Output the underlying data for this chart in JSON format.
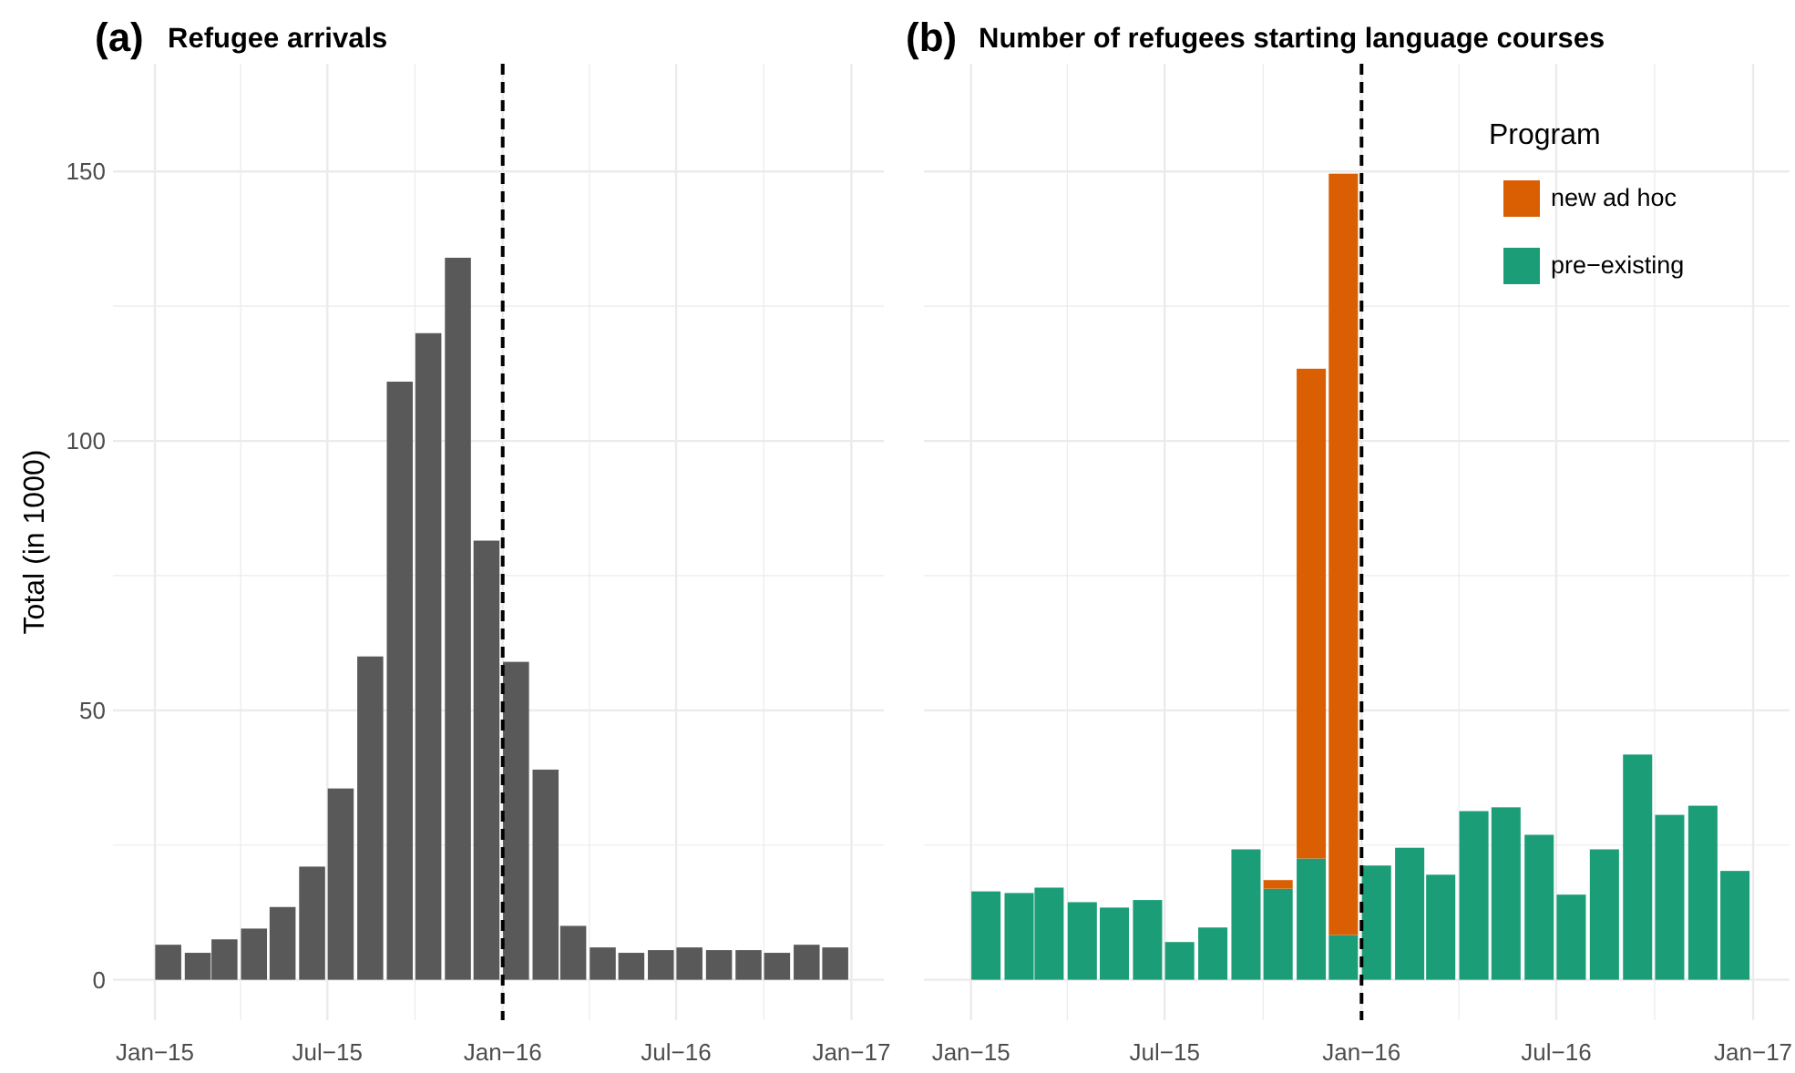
{
  "chart_data": [
    {
      "type": "bar",
      "title": "Refugee arrivals",
      "annotations": [
        "(a)"
      ],
      "ylabel": "Total (in 1000)",
      "x": [
        "2015-01-15",
        "2015-02-15",
        "2015-03-15",
        "2015-04-15",
        "2015-05-15",
        "2015-06-15",
        "2015-07-15",
        "2015-08-15",
        "2015-09-15",
        "2015-10-15",
        "2015-11-15",
        "2015-12-15",
        "2016-01-15",
        "2016-02-15",
        "2016-03-15",
        "2016-04-15",
        "2016-05-15",
        "2016-06-15",
        "2016-07-15",
        "2016-08-15",
        "2016-09-15",
        "2016-10-15",
        "2016-11-15",
        "2016-12-15"
      ],
      "values": [
        6.5,
        5,
        7.5,
        9.5,
        13.5,
        21,
        35.5,
        60,
        111,
        120,
        134,
        81.5,
        59,
        39,
        10,
        6,
        5,
        5.5,
        6,
        5.5,
        5.5,
        5,
        6.5,
        6
      ],
      "color": "#595959",
      "xlim": [
        "2014-11-18",
        "2017-02-04"
      ],
      "xticks": [
        {
          "value": "2015-01-01",
          "label": "Jan−15"
        },
        {
          "value": "2015-04-01",
          "label": null
        },
        {
          "value": "2015-07-01",
          "label": "Jul−15"
        },
        {
          "value": "2015-10-01",
          "label": null
        },
        {
          "value": "2016-01-01",
          "label": "Jan−16"
        },
        {
          "value": "2016-04-01",
          "label": null
        },
        {
          "value": "2016-07-01",
          "label": "Jul−16"
        },
        {
          "value": "2016-10-01",
          "label": null
        },
        {
          "value": "2017-01-01",
          "label": "Jan−17"
        }
      ],
      "ylim": [
        -7.5,
        170
      ],
      "yticks": [
        0,
        {
          "value": 25,
          "label": null
        },
        50,
        {
          "value": 75,
          "label": null
        },
        100,
        {
          "value": 125,
          "label": null
        },
        150
      ],
      "grid": true,
      "ref_lines": [
        {
          "axis": "x",
          "value": "2016-01-01",
          "color": "#000000",
          "line_style": "dashed"
        }
      ]
    },
    {
      "type": "bar",
      "title": "Number of refugees starting language courses",
      "annotations": [
        "(b)"
      ],
      "stacked": true,
      "legend_title": "Program",
      "legend": "top right",
      "tick_labels": "x",
      "x": [
        "2015-01-15",
        "2015-02-15",
        "2015-03-15",
        "2015-04-15",
        "2015-05-15",
        "2015-06-15",
        "2015-07-15",
        "2015-08-15",
        "2015-09-15",
        "2015-10-15",
        "2015-11-15",
        "2015-12-15",
        "2016-01-15",
        "2016-02-15",
        "2016-03-15",
        "2016-04-15",
        "2016-05-15",
        "2016-06-15",
        "2016-07-15",
        "2016-08-15",
        "2016-09-15",
        "2016-10-15",
        "2016-11-15",
        "2016-12-15"
      ],
      "series": [
        {
          "name": "pre−existing",
          "color": "#1b9e77",
          "values": [
            16.4,
            16.1,
            17.1,
            14.4,
            13.4,
            14.8,
            7,
            9.7,
            24.2,
            16.9,
            22.5,
            8.3,
            21.2,
            24.5,
            19.5,
            31.3,
            32,
            26.9,
            15.8,
            24.2,
            41.8,
            30.6,
            32.3,
            20.2
          ]
        },
        {
          "name": "new ad hoc",
          "color": "#d95f02",
          "values": [
            0,
            0,
            0,
            0,
            0,
            0,
            0,
            0,
            0,
            1.6,
            90.9,
            141.3,
            0,
            0,
            0,
            0,
            0,
            0,
            0,
            0,
            0,
            0,
            0,
            0
          ]
        }
      ],
      "xlim": [
        "2014-11-18",
        "2017-02-04"
      ],
      "xticks": [
        {
          "value": "2015-01-01",
          "label": "Jan−15"
        },
        {
          "value": "2015-04-01",
          "label": null
        },
        {
          "value": "2015-07-01",
          "label": "Jul−15"
        },
        {
          "value": "2015-10-01",
          "label": null
        },
        {
          "value": "2016-01-01",
          "label": "Jan−16"
        },
        {
          "value": "2016-04-01",
          "label": null
        },
        {
          "value": "2016-07-01",
          "label": "Jul−16"
        },
        {
          "value": "2016-10-01",
          "label": null
        },
        {
          "value": "2017-01-01",
          "label": "Jan−17"
        }
      ],
      "ylim": [
        -7.5,
        170
      ],
      "yticks": [
        0,
        {
          "value": 25,
          "label": null
        },
        50,
        {
          "value": 75,
          "label": null
        },
        100,
        {
          "value": 125,
          "label": null
        },
        150
      ],
      "grid": true,
      "ref_lines": [
        {
          "axis": "x",
          "value": "2016-01-01",
          "color": "#000000",
          "line_style": "dashed"
        }
      ]
    }
  ]
}
